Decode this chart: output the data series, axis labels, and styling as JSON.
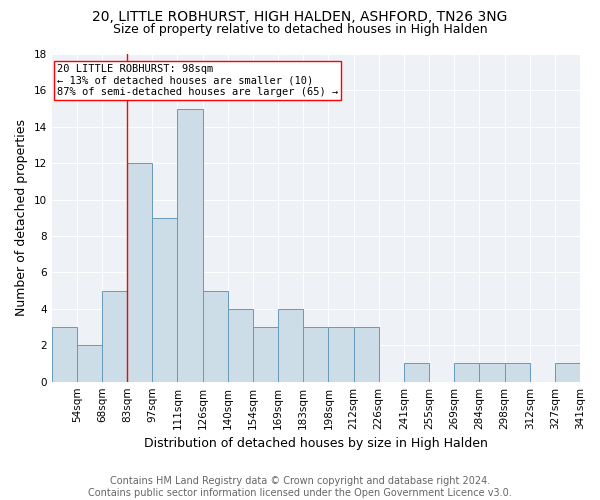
{
  "title1": "20, LITTLE ROBHURST, HIGH HALDEN, ASHFORD, TN26 3NG",
  "title2": "Size of property relative to detached houses in High Halden",
  "xlabel": "Distribution of detached houses by size in High Halden",
  "ylabel": "Number of detached properties",
  "footnote1": "Contains HM Land Registry data © Crown copyright and database right 2024.",
  "footnote2": "Contains public sector information licensed under the Open Government Licence v3.0.",
  "bin_labels": [
    "54sqm",
    "68sqm",
    "83sqm",
    "97sqm",
    "111sqm",
    "126sqm",
    "140sqm",
    "154sqm",
    "169sqm",
    "183sqm",
    "198sqm",
    "212sqm",
    "226sqm",
    "241sqm",
    "255sqm",
    "269sqm",
    "284sqm",
    "298sqm",
    "312sqm",
    "327sqm",
    "341sqm"
  ],
  "bar_heights": [
    3,
    2,
    5,
    12,
    9,
    15,
    5,
    4,
    3,
    4,
    3,
    3,
    3,
    0,
    1,
    0,
    1,
    1,
    1,
    0,
    1
  ],
  "bar_color": "#ccdde8",
  "bar_edge_color": "#6699bb",
  "annotation_line_color": "red",
  "annotation_box_text": "20 LITTLE ROBHURST: 98sqm\n← 13% of detached houses are smaller (10)\n87% of semi-detached houses are larger (65) →",
  "ylim": [
    0,
    18
  ],
  "yticks": [
    0,
    2,
    4,
    6,
    8,
    10,
    12,
    14,
    16,
    18
  ],
  "bg_color": "#eef2f7",
  "grid_color": "white",
  "title_fontsize": 10,
  "subtitle_fontsize": 9,
  "axis_label_fontsize": 9,
  "tick_fontsize": 7.5,
  "annotation_fontsize": 7.5,
  "footnote_fontsize": 7
}
